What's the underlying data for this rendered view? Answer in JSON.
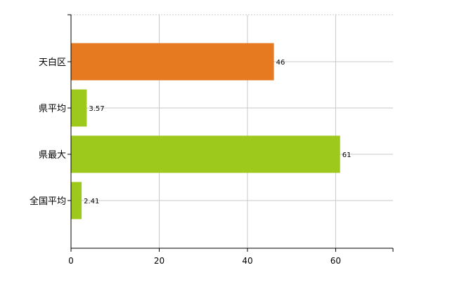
{
  "chart_data": {
    "type": "bar",
    "orientation": "horizontal",
    "categories": [
      "天白区",
      "県平均",
      "県最大",
      "全国平均"
    ],
    "values": [
      46,
      3.57,
      61,
      2.41
    ],
    "value_labels": [
      "46",
      "3.57",
      "61",
      "2.41"
    ],
    "bar_colors": [
      "#e57a20",
      "#9dc91d",
      "#9dc91d",
      "#9dc91d"
    ],
    "xlim": [
      0,
      73
    ],
    "x_ticks": [
      0,
      20,
      40,
      60
    ],
    "grid": true,
    "title": "",
    "xlabel": "",
    "ylabel": ""
  }
}
